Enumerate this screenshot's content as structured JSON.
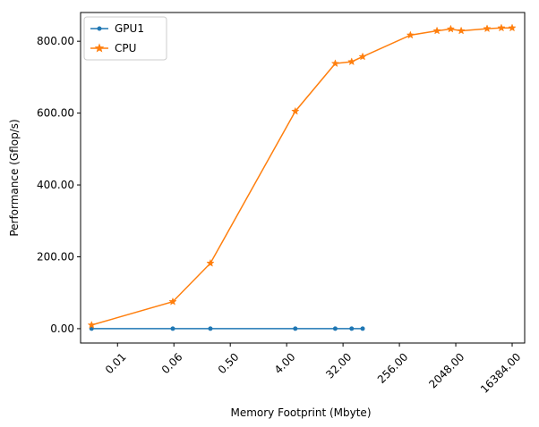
{
  "chart_data": {
    "type": "line",
    "xlabel": "Memory Footprint (Mbyte)",
    "ylabel": "Performance (Gflop/s)",
    "x_scale": "log2",
    "xlim": [
      0.002,
      26000
    ],
    "ylim": [
      -40,
      880
    ],
    "x_ticks": [
      {
        "value": 0.0078125,
        "label": "0.01"
      },
      {
        "value": 0.0625,
        "label": "0.06"
      },
      {
        "value": 0.5,
        "label": "0.50"
      },
      {
        "value": 4,
        "label": "4.00"
      },
      {
        "value": 32,
        "label": "32.00"
      },
      {
        "value": 256,
        "label": "256.00"
      },
      {
        "value": 2048,
        "label": "2048.00"
      },
      {
        "value": 16384,
        "label": "16384.00"
      }
    ],
    "y_ticks": [
      {
        "value": 0,
        "label": "0.00"
      },
      {
        "value": 200,
        "label": "200.00"
      },
      {
        "value": 400,
        "label": "400.00"
      },
      {
        "value": 600,
        "label": "600.00"
      },
      {
        "value": 800,
        "label": "800.00"
      }
    ],
    "grid": false,
    "legend_position": "top-left",
    "series": [
      {
        "name": "GPU1",
        "color": "#1f77b4",
        "marker": "circle",
        "x": [
          0.003,
          0.06,
          0.24,
          5.5,
          24,
          44,
          66
        ],
        "y": [
          0,
          0,
          0,
          0,
          0,
          0,
          0
        ]
      },
      {
        "name": "CPU",
        "color": "#ff7f0e",
        "marker": "star",
        "x": [
          0.003,
          0.06,
          0.24,
          5.5,
          24,
          44,
          66,
          384,
          1024,
          1700,
          2500,
          6500,
          11000,
          16384
        ],
        "y": [
          10,
          75,
          182,
          605,
          738,
          743,
          757,
          817,
          829,
          834,
          829,
          835,
          837,
          837
        ]
      }
    ]
  }
}
